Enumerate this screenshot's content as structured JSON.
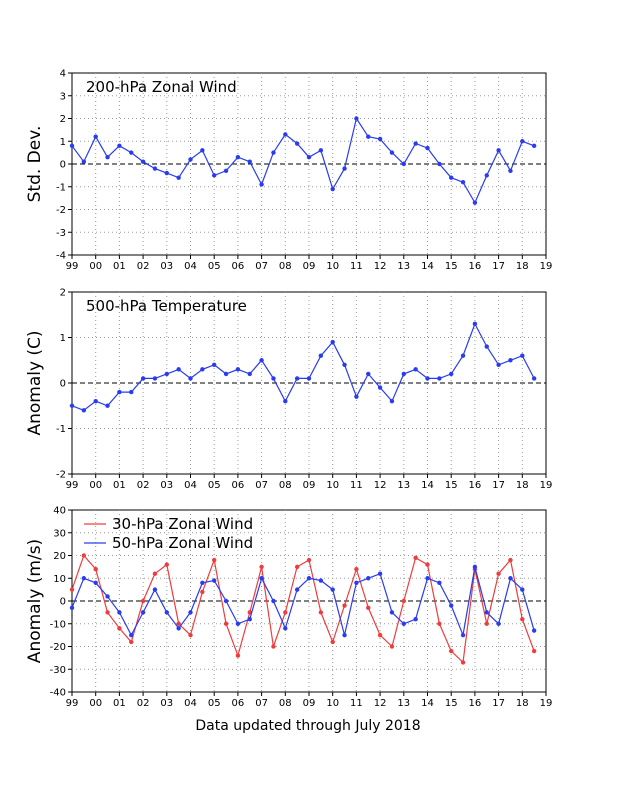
{
  "footer": "Data updated through July 2018",
  "colors": {
    "red": "#f03c3c",
    "blue": "#2a3cf0",
    "grid": "#9a9a9a",
    "zero": "#000000"
  },
  "x_ticks": [
    "99",
    "00",
    "01",
    "02",
    "03",
    "04",
    "05",
    "06",
    "07",
    "08",
    "09",
    "10",
    "11",
    "12",
    "13",
    "14",
    "15",
    "16",
    "17",
    "18",
    "19"
  ],
  "chart_data": [
    {
      "type": "line",
      "title": "200-hPa Zonal Wind",
      "ylabel": "Std. Dev.",
      "xlim": [
        1999,
        2019
      ],
      "ylim": [
        -4,
        4
      ],
      "yticks": [
        "-4",
        "-3",
        "-2",
        "-1",
        "0",
        "1",
        "2",
        "3",
        "4"
      ],
      "grid": true,
      "series": [
        {
          "style": "line+points",
          "color": "#2a3cf0",
          "x": [
            1999.0,
            1999.5,
            2000.0,
            2000.5,
            2001.0,
            2001.5,
            2002.0,
            2002.5,
            2003.0,
            2003.5,
            2004.0,
            2004.5,
            2005.0,
            2005.5,
            2006.0,
            2006.5,
            2007.0,
            2007.5,
            2008.0,
            2008.5,
            2009.0,
            2009.5,
            2010.0,
            2010.5,
            2011.0,
            2011.5,
            2012.0,
            2012.5,
            2013.0,
            2013.5,
            2014.0,
            2014.5,
            2015.0,
            2015.5,
            2016.0,
            2016.5,
            2017.0,
            2017.5,
            2018.0,
            2018.5
          ],
          "y": [
            0.8,
            0.1,
            1.2,
            0.3,
            0.8,
            0.5,
            0.1,
            -0.2,
            -0.4,
            -0.6,
            0.2,
            0.6,
            -0.5,
            -0.3,
            0.3,
            0.1,
            -0.9,
            0.5,
            1.3,
            0.9,
            0.3,
            0.6,
            -1.1,
            -0.2,
            2.0,
            1.2,
            1.1,
            0.5,
            0.0,
            0.9,
            0.7,
            0.0,
            -0.6,
            -0.8,
            -1.7,
            -0.5,
            0.6,
            -0.3,
            1.0,
            0.8
          ]
        }
      ]
    },
    {
      "type": "line",
      "title": "500-hPa Temperature",
      "ylabel": "Anomaly (C)",
      "xlim": [
        1999,
        2019
      ],
      "ylim": [
        -2,
        2
      ],
      "yticks": [
        "-2",
        "-1",
        "0",
        "1",
        "2"
      ],
      "grid": true,
      "series": [
        {
          "style": "line+points",
          "color": "#2a3cf0",
          "x": [
            1999.0,
            1999.5,
            2000.0,
            2000.5,
            2001.0,
            2001.5,
            2002.0,
            2002.5,
            2003.0,
            2003.5,
            2004.0,
            2004.5,
            2005.0,
            2005.5,
            2006.0,
            2006.5,
            2007.0,
            2007.5,
            2008.0,
            2008.5,
            2009.0,
            2009.5,
            2010.0,
            2010.5,
            2011.0,
            2011.5,
            2012.0,
            2012.5,
            2013.0,
            2013.5,
            2014.0,
            2014.5,
            2015.0,
            2015.5,
            2016.0,
            2016.5,
            2017.0,
            2017.5,
            2018.0,
            2018.5
          ],
          "y": [
            -0.5,
            -0.6,
            -0.4,
            -0.5,
            -0.2,
            -0.2,
            0.1,
            0.1,
            0.2,
            0.3,
            0.1,
            0.3,
            0.4,
            0.2,
            0.3,
            0.2,
            0.5,
            0.1,
            -0.4,
            0.1,
            0.1,
            0.6,
            0.9,
            0.4,
            -0.3,
            0.2,
            -0.1,
            -0.4,
            0.2,
            0.3,
            0.1,
            0.1,
            0.2,
            0.6,
            1.3,
            0.8,
            0.4,
            0.5,
            0.6,
            0.1
          ]
        }
      ]
    },
    {
      "type": "line",
      "title": "",
      "ylabel": "Anomaly (m/s)",
      "xlim": [
        1999,
        2019
      ],
      "ylim": [
        -40,
        40
      ],
      "yticks": [
        "-40",
        "-30",
        "-20",
        "-10",
        "0",
        "10",
        "20",
        "30",
        "40"
      ],
      "grid": true,
      "legend": "top-left",
      "series": [
        {
          "name": "30-hPa Zonal Wind",
          "style": "line+points",
          "color": "#f03c3c",
          "x": [
            1999.0,
            1999.5,
            2000.0,
            2000.5,
            2001.0,
            2001.5,
            2002.0,
            2002.5,
            2003.0,
            2003.5,
            2004.0,
            2004.5,
            2005.0,
            2005.5,
            2006.0,
            2006.5,
            2007.0,
            2007.5,
            2008.0,
            2008.5,
            2009.0,
            2009.5,
            2010.0,
            2010.5,
            2011.0,
            2011.5,
            2012.0,
            2012.5,
            2013.0,
            2013.5,
            2014.0,
            2014.5,
            2015.0,
            2015.5,
            2016.0,
            2016.5,
            2017.0,
            2017.5,
            2018.0,
            2018.5
          ],
          "y": [
            5,
            20,
            14,
            -5,
            -12,
            -18,
            0,
            12,
            16,
            -10,
            -15,
            4,
            18,
            -10,
            -24,
            -5,
            15,
            -20,
            -5,
            15,
            18,
            -5,
            -18,
            -2,
            14,
            -3,
            -15,
            -20,
            0,
            19,
            16,
            -10,
            -22,
            -27,
            14,
            -10,
            12,
            18,
            -8,
            -22
          ]
        },
        {
          "name": "50-hPa Zonal Wind",
          "style": "line+points",
          "color": "#2a3cf0",
          "x": [
            1999.0,
            1999.5,
            2000.0,
            2000.5,
            2001.0,
            2001.5,
            2002.0,
            2002.5,
            2003.0,
            2003.5,
            2004.0,
            2004.5,
            2005.0,
            2005.5,
            2006.0,
            2006.5,
            2007.0,
            2007.5,
            2008.0,
            2008.5,
            2009.0,
            2009.5,
            2010.0,
            2010.5,
            2011.0,
            2011.5,
            2012.0,
            2012.5,
            2013.0,
            2013.5,
            2014.0,
            2014.5,
            2015.0,
            2015.5,
            2016.0,
            2016.5,
            2017.0,
            2017.5,
            2018.0,
            2018.5
          ],
          "y": [
            -3,
            10,
            8,
            2,
            -5,
            -15,
            -5,
            5,
            -5,
            -12,
            -5,
            8,
            9,
            0,
            -10,
            -8,
            10,
            0,
            -12,
            5,
            10,
            9,
            5,
            -15,
            8,
            10,
            12,
            -5,
            -10,
            -8,
            10,
            8,
            -2,
            -15,
            15,
            -5,
            -10,
            10,
            5,
            -13
          ]
        }
      ]
    }
  ]
}
